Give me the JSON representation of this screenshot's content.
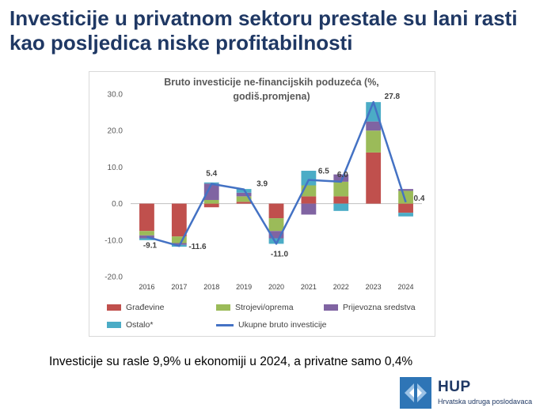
{
  "slide": {
    "title": "Investicije u privatnom sektoru prestale su lani rasti kao posljedica niske profitabilnosti",
    "caption": "Investicije su rasle 9,9% u ekonomiji u 2024, a privatne samo  0,4%"
  },
  "logo": {
    "name": "HUP",
    "subtitle": "Hrvatska udruga poslodavaca"
  },
  "chart_data": {
    "type": "bar",
    "stacked": true,
    "title_line1": "Bruto investicije ne-financijskih poduzeća (%,",
    "title_line2": "godiš.promjena)",
    "categories": [
      "2016",
      "2017",
      "2018",
      "2019",
      "2020",
      "2021",
      "2022",
      "2023",
      "2024"
    ],
    "ylim": [
      -20,
      30
    ],
    "yticks": [
      "30.0",
      "20.0",
      "10.0",
      "0.0",
      "-10.0",
      "-20.0"
    ],
    "ytick_values": [
      30,
      20,
      10,
      0,
      -10,
      -20
    ],
    "grid": false,
    "legend_position": "bottom",
    "series": [
      {
        "name": "Građevine",
        "color": "#c0504d",
        "values": [
          -7.5,
          -9.0,
          -1.0,
          0.5,
          -4.0,
          2.0,
          2.0,
          14.0,
          -2.5
        ]
      },
      {
        "name": "Strojevi/oprema",
        "color": "#9bbb59",
        "values": [
          -1.2,
          -1.8,
          1.0,
          1.5,
          -3.5,
          3.0,
          4.0,
          6.0,
          3.5
        ]
      },
      {
        "name": "Prijevozna sredstva",
        "color": "#8064a2",
        "values": [
          -0.8,
          -0.5,
          4.5,
          1.0,
          -2.0,
          -3.0,
          2.0,
          2.5,
          0.5
        ]
      },
      {
        "name": "Ostalo*",
        "color": "#4bacc6",
        "values": [
          -0.5,
          -0.5,
          0.3,
          1.0,
          -1.5,
          4.0,
          -2.0,
          5.3,
          -1.0
        ]
      }
    ],
    "line_series": {
      "name": "Ukupne bruto investicije",
      "color": "#4472c4",
      "values": [
        -9.1,
        -11.6,
        5.4,
        3.9,
        -11.0,
        6.5,
        6.0,
        27.8,
        0.4
      ],
      "labels": [
        "-9.1",
        "-11.6",
        "5.4",
        "3.9",
        "-11.0",
        "6.5",
        "6.0",
        "27.8",
        "0.4"
      ]
    }
  }
}
